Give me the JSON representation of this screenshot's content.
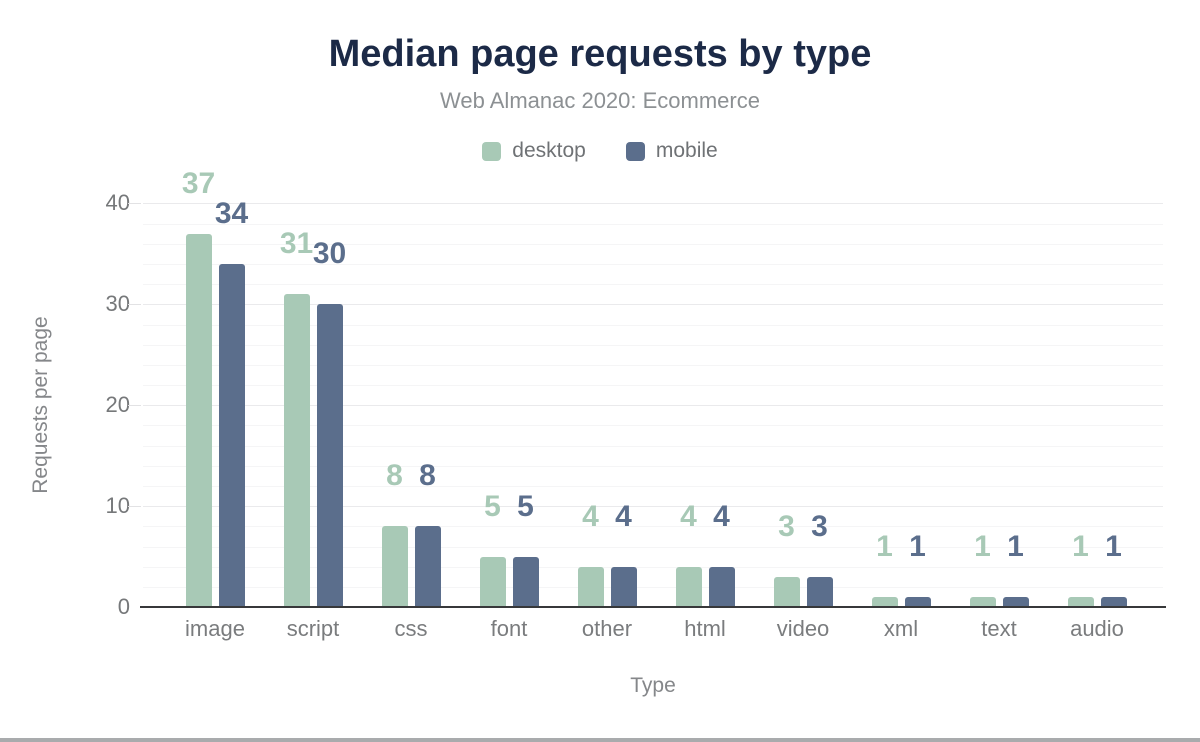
{
  "chart_data": {
    "type": "bar",
    "title": "Median page requests by type",
    "subtitle": "Web Almanac 2020: Ecommerce",
    "xlabel": "Type",
    "ylabel": "Requests per page",
    "categories": [
      "image",
      "script",
      "css",
      "font",
      "other",
      "html",
      "video",
      "xml",
      "text",
      "audio"
    ],
    "series": [
      {
        "name": "desktop",
        "color": "#a8c9b6",
        "values": [
          37,
          31,
          8,
          5,
          4,
          4,
          3,
          1,
          1,
          1
        ]
      },
      {
        "name": "mobile",
        "color": "#5b6e8c",
        "values": [
          34,
          30,
          8,
          5,
          4,
          4,
          3,
          1,
          1,
          1
        ]
      }
    ],
    "ylim": [
      0,
      44
    ],
    "yticks": [
      0,
      10,
      20,
      30,
      40
    ],
    "grid_step": 2,
    "grid": true,
    "legend_position": "top"
  },
  "colors": {
    "title": "#1c2a47",
    "desktop": "#a8c9b6",
    "mobile": "#5b6e8c",
    "axis_line": "#37383a",
    "secondary_text": "#85878a"
  }
}
